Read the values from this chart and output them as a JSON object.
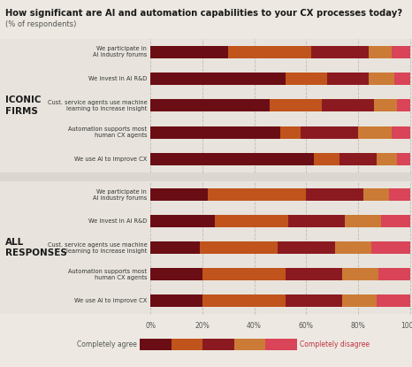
{
  "title": "How significant are AI and automation capabilities to your CX processes today?",
  "subtitle": "(% of respondents)",
  "background_color": "#ede9e2",
  "section_bg_color": "#e8e4dd",
  "gap_bg_color": "#dbd7d0",
  "section1_label": "ICONIC\nFIRMS",
  "section2_label": "ALL\nRESPONSES",
  "categories_iconic": [
    "We participate in\nAI industry forums",
    "We invest in AI R&D",
    "Cust. service agents use machine\nlearning to increase insight",
    "Automation supports most\nhuman CX agents",
    "We use AI to improve CX"
  ],
  "categories_all": [
    "We participate in\nAI industry forums",
    "We invest in AI R&D",
    "Cust. service agents use machine\nlearning to increase insight",
    "Automation supports most\nhuman CX agents",
    "We use AI to improve CX"
  ],
  "colors": [
    "#6B0D14",
    "#C0541C",
    "#8B1A20",
    "#CB7B35",
    "#D94458"
  ],
  "iconic_data": [
    [
      30,
      32,
      22,
      9,
      7
    ],
    [
      52,
      16,
      16,
      10,
      6
    ],
    [
      46,
      20,
      20,
      9,
      5
    ],
    [
      50,
      8,
      22,
      13,
      7
    ],
    [
      63,
      10,
      14,
      8,
      5
    ]
  ],
  "all_data": [
    [
      22,
      38,
      22,
      10,
      8
    ],
    [
      25,
      28,
      22,
      14,
      11
    ],
    [
      19,
      30,
      22,
      14,
      15
    ],
    [
      20,
      32,
      22,
      14,
      12
    ],
    [
      20,
      32,
      22,
      13,
      13
    ]
  ],
  "legend_left": "Completely agree",
  "legend_right": "Completely disagree",
  "xlabel_ticks": [
    "0%",
    "20%",
    "40%",
    "60%",
    "80%",
    "100%"
  ]
}
